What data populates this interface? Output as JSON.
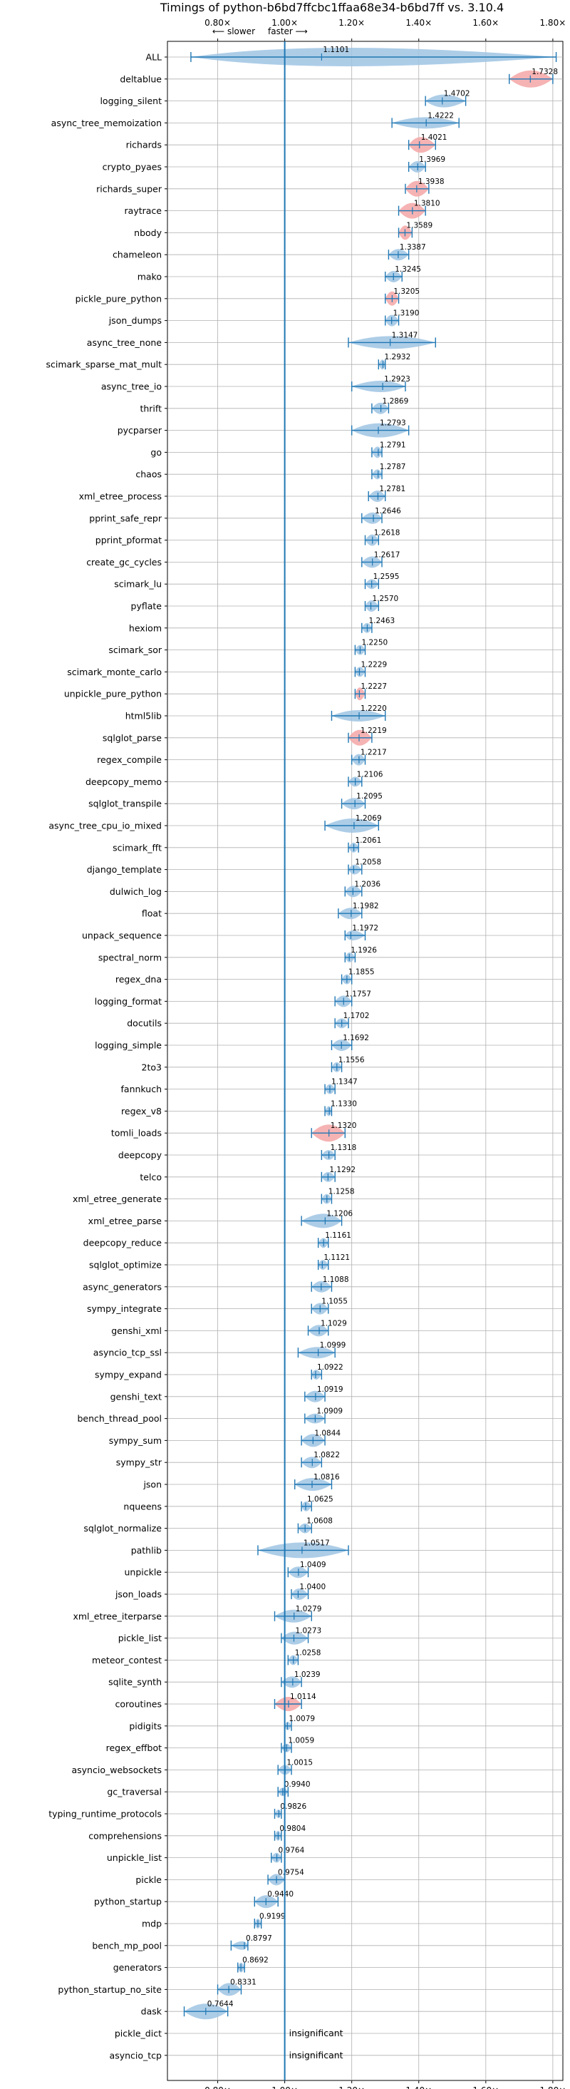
{
  "chart_data": {
    "type": "violin",
    "title": "Timings of python-b6bd7ffcbc1ffaa68e34-b6bd7ff vs. 3.10.4",
    "xlim": [
      0.65,
      1.83
    ],
    "xticks": [
      0.8,
      1.0,
      1.2,
      1.4,
      1.6,
      1.8
    ],
    "xtick_labels": [
      "0.80×",
      "1.00×",
      "1.20×",
      "1.40×",
      "1.60×",
      "1.80×"
    ],
    "slower_label": "⟵ slower",
    "faster_label": "faster ⟶",
    "grid": true,
    "insignificant_text": "insignificant",
    "benchmarks": [
      {
        "name": "ALL",
        "value": 1.1101,
        "label": "1.1101",
        "lo": 0.72,
        "hi": 1.81,
        "w": 1.0,
        "color": "blue",
        "sig": true
      },
      {
        "name": "deltablue",
        "value": 1.7328,
        "label": "1.7328",
        "lo": 1.67,
        "hi": 1.8,
        "w": 0.9,
        "color": "red",
        "sig": true
      },
      {
        "name": "logging_silent",
        "value": 1.4702,
        "label": "1.4702",
        "lo": 1.42,
        "hi": 1.54,
        "w": 0.6,
        "color": "blue",
        "sig": true
      },
      {
        "name": "async_tree_memoization",
        "value": 1.4222,
        "label": "1.4222",
        "lo": 1.32,
        "hi": 1.52,
        "w": 0.5,
        "color": "blue",
        "sig": true
      },
      {
        "name": "richards",
        "value": 1.4021,
        "label": "1.4021",
        "lo": 1.37,
        "hi": 1.45,
        "w": 0.8,
        "color": "red",
        "sig": true
      },
      {
        "name": "crypto_pyaes",
        "value": 1.3969,
        "label": "1.3969",
        "lo": 1.37,
        "hi": 1.42,
        "w": 0.5,
        "color": "blue",
        "sig": true
      },
      {
        "name": "richards_super",
        "value": 1.3938,
        "label": "1.3938",
        "lo": 1.36,
        "hi": 1.43,
        "w": 0.8,
        "color": "red",
        "sig": true
      },
      {
        "name": "raytrace",
        "value": 1.381,
        "label": "1.3810",
        "lo": 1.34,
        "hi": 1.42,
        "w": 0.8,
        "color": "red",
        "sig": true
      },
      {
        "name": "nbody",
        "value": 1.3589,
        "label": "1.3589",
        "lo": 1.34,
        "hi": 1.38,
        "w": 0.7,
        "color": "red",
        "sig": true
      },
      {
        "name": "chameleon",
        "value": 1.3387,
        "label": "1.3387",
        "lo": 1.31,
        "hi": 1.37,
        "w": 0.5,
        "color": "blue",
        "sig": true
      },
      {
        "name": "mako",
        "value": 1.3245,
        "label": "1.3245",
        "lo": 1.3,
        "hi": 1.35,
        "w": 0.5,
        "color": "blue",
        "sig": true
      },
      {
        "name": "pickle_pure_python",
        "value": 1.3205,
        "label": "1.3205",
        "lo": 1.3,
        "hi": 1.34,
        "w": 0.7,
        "color": "red",
        "sig": true
      },
      {
        "name": "json_dumps",
        "value": 1.319,
        "label": "1.3190",
        "lo": 1.3,
        "hi": 1.34,
        "w": 0.5,
        "color": "blue",
        "sig": true
      },
      {
        "name": "async_tree_none",
        "value": 1.3147,
        "label": "1.3147",
        "lo": 1.19,
        "hi": 1.45,
        "w": 0.6,
        "color": "blue",
        "sig": true
      },
      {
        "name": "scimark_sparse_mat_mult",
        "value": 1.2932,
        "label": "1.2932",
        "lo": 1.28,
        "hi": 1.3,
        "w": 0.4,
        "color": "blue",
        "sig": true
      },
      {
        "name": "async_tree_io",
        "value": 1.2923,
        "label": "1.2923",
        "lo": 1.2,
        "hi": 1.36,
        "w": 0.5,
        "color": "blue",
        "sig": true
      },
      {
        "name": "thrift",
        "value": 1.2869,
        "label": "1.2869",
        "lo": 1.26,
        "hi": 1.31,
        "w": 0.5,
        "color": "blue",
        "sig": true
      },
      {
        "name": "pycparser",
        "value": 1.2793,
        "label": "1.2793",
        "lo": 1.2,
        "hi": 1.37,
        "w": 0.7,
        "color": "blue",
        "sig": true
      },
      {
        "name": "go",
        "value": 1.2791,
        "label": "1.2791",
        "lo": 1.26,
        "hi": 1.29,
        "w": 0.5,
        "color": "blue",
        "sig": true
      },
      {
        "name": "chaos",
        "value": 1.2787,
        "label": "1.2787",
        "lo": 1.26,
        "hi": 1.29,
        "w": 0.4,
        "color": "blue",
        "sig": true
      },
      {
        "name": "xml_etree_process",
        "value": 1.2781,
        "label": "1.2781",
        "lo": 1.25,
        "hi": 1.3,
        "w": 0.5,
        "color": "blue",
        "sig": true
      },
      {
        "name": "pprint_safe_repr",
        "value": 1.2646,
        "label": "1.2646",
        "lo": 1.23,
        "hi": 1.29,
        "w": 0.5,
        "color": "blue",
        "sig": true
      },
      {
        "name": "pprint_pformat",
        "value": 1.2618,
        "label": "1.2618",
        "lo": 1.24,
        "hi": 1.28,
        "w": 0.5,
        "color": "blue",
        "sig": true
      },
      {
        "name": "create_gc_cycles",
        "value": 1.2617,
        "label": "1.2617",
        "lo": 1.23,
        "hi": 1.29,
        "w": 0.5,
        "color": "blue",
        "sig": true
      },
      {
        "name": "scimark_lu",
        "value": 1.2595,
        "label": "1.2595",
        "lo": 1.24,
        "hi": 1.28,
        "w": 0.4,
        "color": "blue",
        "sig": true
      },
      {
        "name": "pyflate",
        "value": 1.257,
        "label": "1.2570",
        "lo": 1.24,
        "hi": 1.28,
        "w": 0.5,
        "color": "blue",
        "sig": true
      },
      {
        "name": "hexiom",
        "value": 1.2463,
        "label": "1.2463",
        "lo": 1.23,
        "hi": 1.26,
        "w": 0.4,
        "color": "blue",
        "sig": true
      },
      {
        "name": "scimark_sor",
        "value": 1.225,
        "label": "1.2250",
        "lo": 1.21,
        "hi": 1.24,
        "w": 0.4,
        "color": "blue",
        "sig": true
      },
      {
        "name": "scimark_monte_carlo",
        "value": 1.2229,
        "label": "1.2229",
        "lo": 1.21,
        "hi": 1.24,
        "w": 0.4,
        "color": "blue",
        "sig": true
      },
      {
        "name": "unpickle_pure_python",
        "value": 1.2227,
        "label": "1.2227",
        "lo": 1.21,
        "hi": 1.24,
        "w": 0.6,
        "color": "red",
        "sig": true
      },
      {
        "name": "html5lib",
        "value": 1.222,
        "label": "1.2220",
        "lo": 1.14,
        "hi": 1.3,
        "w": 0.5,
        "color": "blue",
        "sig": true
      },
      {
        "name": "sqlglot_parse",
        "value": 1.2219,
        "label": "1.2219",
        "lo": 1.19,
        "hi": 1.26,
        "w": 0.8,
        "color": "red",
        "sig": true
      },
      {
        "name": "regex_compile",
        "value": 1.2217,
        "label": "1.2217",
        "lo": 1.2,
        "hi": 1.24,
        "w": 0.5,
        "color": "blue",
        "sig": true
      },
      {
        "name": "deepcopy_memo",
        "value": 1.2106,
        "label": "1.2106",
        "lo": 1.19,
        "hi": 1.23,
        "w": 0.4,
        "color": "blue",
        "sig": true
      },
      {
        "name": "sqlglot_transpile",
        "value": 1.2095,
        "label": "1.2095",
        "lo": 1.17,
        "hi": 1.24,
        "w": 0.5,
        "color": "blue",
        "sig": true
      },
      {
        "name": "async_tree_cpu_io_mixed",
        "value": 1.2069,
        "label": "1.2069",
        "lo": 1.12,
        "hi": 1.28,
        "w": 0.7,
        "color": "blue",
        "sig": true
      },
      {
        "name": "scimark_fft",
        "value": 1.2061,
        "label": "1.2061",
        "lo": 1.19,
        "hi": 1.22,
        "w": 0.4,
        "color": "blue",
        "sig": true
      },
      {
        "name": "django_template",
        "value": 1.2058,
        "label": "1.2058",
        "lo": 1.19,
        "hi": 1.23,
        "w": 0.4,
        "color": "blue",
        "sig": true
      },
      {
        "name": "dulwich_log",
        "value": 1.2036,
        "label": "1.2036",
        "lo": 1.18,
        "hi": 1.23,
        "w": 0.5,
        "color": "blue",
        "sig": true
      },
      {
        "name": "float",
        "value": 1.1982,
        "label": "1.1982",
        "lo": 1.16,
        "hi": 1.23,
        "w": 0.5,
        "color": "blue",
        "sig": true
      },
      {
        "name": "unpack_sequence",
        "value": 1.1972,
        "label": "1.1972",
        "lo": 1.18,
        "hi": 1.24,
        "w": 0.4,
        "color": "blue",
        "sig": true
      },
      {
        "name": "spectral_norm",
        "value": 1.1926,
        "label": "1.1926",
        "lo": 1.18,
        "hi": 1.21,
        "w": 0.4,
        "color": "blue",
        "sig": true
      },
      {
        "name": "regex_dna",
        "value": 1.1855,
        "label": "1.1855",
        "lo": 1.17,
        "hi": 1.2,
        "w": 0.4,
        "color": "blue",
        "sig": true
      },
      {
        "name": "logging_format",
        "value": 1.1757,
        "label": "1.1757",
        "lo": 1.15,
        "hi": 1.2,
        "w": 0.5,
        "color": "blue",
        "sig": true
      },
      {
        "name": "docutils",
        "value": 1.1702,
        "label": "1.1702",
        "lo": 1.15,
        "hi": 1.19,
        "w": 0.4,
        "color": "blue",
        "sig": true
      },
      {
        "name": "logging_simple",
        "value": 1.1692,
        "label": "1.1692",
        "lo": 1.14,
        "hi": 1.2,
        "w": 0.5,
        "color": "blue",
        "sig": true
      },
      {
        "name": "2to3",
        "value": 1.1556,
        "label": "1.1556",
        "lo": 1.14,
        "hi": 1.17,
        "w": 0.4,
        "color": "blue",
        "sig": true
      },
      {
        "name": "fannkuch",
        "value": 1.1347,
        "label": "1.1347",
        "lo": 1.12,
        "hi": 1.15,
        "w": 0.4,
        "color": "blue",
        "sig": true
      },
      {
        "name": "regex_v8",
        "value": 1.133,
        "label": "1.1330",
        "lo": 1.12,
        "hi": 1.14,
        "w": 0.4,
        "color": "blue",
        "sig": true
      },
      {
        "name": "tomli_loads",
        "value": 1.132,
        "label": "1.1320",
        "lo": 1.08,
        "hi": 1.18,
        "w": 0.9,
        "color": "red",
        "sig": true
      },
      {
        "name": "deepcopy",
        "value": 1.1318,
        "label": "1.1318",
        "lo": 1.11,
        "hi": 1.15,
        "w": 0.4,
        "color": "blue",
        "sig": true
      },
      {
        "name": "telco",
        "value": 1.1292,
        "label": "1.1292",
        "lo": 1.11,
        "hi": 1.15,
        "w": 0.4,
        "color": "blue",
        "sig": true
      },
      {
        "name": "xml_etree_generate",
        "value": 1.1258,
        "label": "1.1258",
        "lo": 1.11,
        "hi": 1.14,
        "w": 0.4,
        "color": "blue",
        "sig": true
      },
      {
        "name": "xml_etree_parse",
        "value": 1.1206,
        "label": "1.1206",
        "lo": 1.05,
        "hi": 1.17,
        "w": 0.7,
        "color": "blue",
        "sig": true
      },
      {
        "name": "deepcopy_reduce",
        "value": 1.1161,
        "label": "1.1161",
        "lo": 1.1,
        "hi": 1.13,
        "w": 0.4,
        "color": "blue",
        "sig": true
      },
      {
        "name": "sqlglot_optimize",
        "value": 1.1121,
        "label": "1.1121",
        "lo": 1.1,
        "hi": 1.13,
        "w": 0.4,
        "color": "blue",
        "sig": true
      },
      {
        "name": "async_generators",
        "value": 1.1088,
        "label": "1.1088",
        "lo": 1.08,
        "hi": 1.14,
        "w": 0.5,
        "color": "blue",
        "sig": true
      },
      {
        "name": "sympy_integrate",
        "value": 1.1055,
        "label": "1.1055",
        "lo": 1.08,
        "hi": 1.13,
        "w": 0.5,
        "color": "blue",
        "sig": true
      },
      {
        "name": "genshi_xml",
        "value": 1.1029,
        "label": "1.1029",
        "lo": 1.07,
        "hi": 1.13,
        "w": 0.5,
        "color": "blue",
        "sig": true
      },
      {
        "name": "asyncio_tcp_ssl",
        "value": 1.0999,
        "label": "1.0999",
        "lo": 1.04,
        "hi": 1.15,
        "w": 0.5,
        "color": "blue",
        "sig": true
      },
      {
        "name": "sympy_expand",
        "value": 1.0922,
        "label": "1.0922",
        "lo": 1.08,
        "hi": 1.11,
        "w": 0.4,
        "color": "blue",
        "sig": true
      },
      {
        "name": "genshi_text",
        "value": 1.0919,
        "label": "1.0919",
        "lo": 1.06,
        "hi": 1.12,
        "w": 0.5,
        "color": "blue",
        "sig": true
      },
      {
        "name": "bench_thread_pool",
        "value": 1.0909,
        "label": "1.0909",
        "lo": 1.06,
        "hi": 1.12,
        "w": 0.4,
        "color": "blue",
        "sig": true
      },
      {
        "name": "sympy_sum",
        "value": 1.0844,
        "label": "1.0844",
        "lo": 1.05,
        "hi": 1.12,
        "w": 0.6,
        "color": "blue",
        "sig": true
      },
      {
        "name": "sympy_str",
        "value": 1.0822,
        "label": "1.0822",
        "lo": 1.05,
        "hi": 1.11,
        "w": 0.5,
        "color": "blue",
        "sig": true
      },
      {
        "name": "json",
        "value": 1.0816,
        "label": "1.0816",
        "lo": 1.03,
        "hi": 1.14,
        "w": 0.6,
        "color": "blue",
        "sig": true
      },
      {
        "name": "nqueens",
        "value": 1.0625,
        "label": "1.0625",
        "lo": 1.05,
        "hi": 1.08,
        "w": 0.4,
        "color": "blue",
        "sig": true
      },
      {
        "name": "sqlglot_normalize",
        "value": 1.0608,
        "label": "1.0608",
        "lo": 1.04,
        "hi": 1.08,
        "w": 0.4,
        "color": "blue",
        "sig": true
      },
      {
        "name": "pathlib",
        "value": 1.0517,
        "label": "1.0517",
        "lo": 0.92,
        "hi": 1.19,
        "w": 0.8,
        "color": "blue",
        "sig": true
      },
      {
        "name": "unpickle",
        "value": 1.0409,
        "label": "1.0409",
        "lo": 1.01,
        "hi": 1.07,
        "w": 0.5,
        "color": "blue",
        "sig": true
      },
      {
        "name": "json_loads",
        "value": 1.04,
        "label": "1.0400",
        "lo": 1.02,
        "hi": 1.07,
        "w": 0.5,
        "color": "blue",
        "sig": true
      },
      {
        "name": "xml_etree_iterparse",
        "value": 1.0279,
        "label": "1.0279",
        "lo": 0.97,
        "hi": 1.08,
        "w": 0.6,
        "color": "blue",
        "sig": true
      },
      {
        "name": "pickle_list",
        "value": 1.0273,
        "label": "1.0273",
        "lo": 0.99,
        "hi": 1.07,
        "w": 0.6,
        "color": "blue",
        "sig": true
      },
      {
        "name": "meteor_contest",
        "value": 1.0258,
        "label": "1.0258",
        "lo": 1.01,
        "hi": 1.04,
        "w": 0.4,
        "color": "blue",
        "sig": true
      },
      {
        "name": "sqlite_synth",
        "value": 1.0239,
        "label": "1.0239",
        "lo": 0.99,
        "hi": 1.05,
        "w": 0.5,
        "color": "blue",
        "sig": true
      },
      {
        "name": "coroutines",
        "value": 1.0114,
        "label": "1.0114",
        "lo": 0.97,
        "hi": 1.05,
        "w": 0.7,
        "color": "red",
        "sig": true
      },
      {
        "name": "pidigits",
        "value": 1.0079,
        "label": "1.0079",
        "lo": 1.0,
        "hi": 1.02,
        "w": 0.3,
        "color": "blue",
        "sig": true
      },
      {
        "name": "regex_effbot",
        "value": 1.0059,
        "label": "1.0059",
        "lo": 0.99,
        "hi": 1.02,
        "w": 0.3,
        "color": "blue",
        "sig": true
      },
      {
        "name": "asyncio_websockets",
        "value": 1.0015,
        "label": "1.0015",
        "lo": 0.98,
        "hi": 1.02,
        "w": 0.4,
        "color": "blue",
        "sig": true
      },
      {
        "name": "gc_traversal",
        "value": 0.994,
        "label": "0.9940",
        "lo": 0.98,
        "hi": 1.01,
        "w": 0.3,
        "color": "blue",
        "sig": true
      },
      {
        "name": "typing_runtime_protocols",
        "value": 0.9826,
        "label": "0.9826",
        "lo": 0.97,
        "hi": 0.99,
        "w": 0.3,
        "color": "blue",
        "sig": true
      },
      {
        "name": "comprehensions",
        "value": 0.9804,
        "label": "0.9804",
        "lo": 0.97,
        "hi": 0.99,
        "w": 0.4,
        "color": "blue",
        "sig": true
      },
      {
        "name": "unpickle_list",
        "value": 0.9764,
        "label": "0.9764",
        "lo": 0.96,
        "hi": 0.99,
        "w": 0.4,
        "color": "blue",
        "sig": true
      },
      {
        "name": "pickle",
        "value": 0.9754,
        "label": "0.9754",
        "lo": 0.95,
        "hi": 1.0,
        "w": 0.5,
        "color": "blue",
        "sig": true
      },
      {
        "name": "python_startup",
        "value": 0.944,
        "label": "0.9440",
        "lo": 0.91,
        "hi": 0.98,
        "w": 0.6,
        "color": "blue",
        "sig": true
      },
      {
        "name": "mdp",
        "value": 0.9199,
        "label": "0.9199",
        "lo": 0.91,
        "hi": 0.93,
        "w": 0.4,
        "color": "blue",
        "sig": true
      },
      {
        "name": "bench_mp_pool",
        "value": 0.8797,
        "label": "0.8797",
        "lo": 0.84,
        "hi": 0.89,
        "w": 0.3,
        "color": "blue",
        "sig": true
      },
      {
        "name": "generators",
        "value": 0.8692,
        "label": "0.8692",
        "lo": 0.86,
        "hi": 0.88,
        "w": 0.4,
        "color": "blue",
        "sig": true
      },
      {
        "name": "python_startup_no_site",
        "value": 0.8331,
        "label": "0.8331",
        "lo": 0.8,
        "hi": 0.87,
        "w": 0.6,
        "color": "blue",
        "sig": true
      },
      {
        "name": "dask",
        "value": 0.7644,
        "label": "0.7644",
        "lo": 0.7,
        "hi": 0.83,
        "w": 0.8,
        "color": "blue",
        "sig": true
      },
      {
        "name": "pickle_dict",
        "value": 1.0,
        "label": "",
        "lo": 1.0,
        "hi": 1.0,
        "w": 0,
        "color": "blue",
        "sig": false
      },
      {
        "name": "asyncio_tcp",
        "value": 1.0,
        "label": "",
        "lo": 1.0,
        "hi": 1.0,
        "w": 0,
        "color": "blue",
        "sig": false
      }
    ]
  },
  "colors": {
    "axis_line": "#1f77b4",
    "violin_blue": "#9fc4e3",
    "violin_red": "#f4a6a6",
    "grid": "#b0b0b0"
  }
}
